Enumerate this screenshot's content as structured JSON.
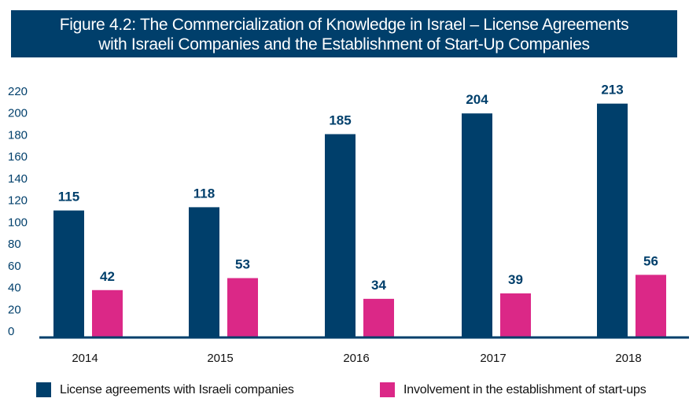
{
  "title": {
    "line1": "Figure 4.2: The Commercialization of Knowledge in Israel – License Agreements",
    "line2": "with Israeli Companies and the Establishment of Start-Up Companies"
  },
  "colors": {
    "title_bg": "#003f6b",
    "license": "#003f6b",
    "startups": "#db2887",
    "axis_text": "#003f6b"
  },
  "chart_data": {
    "type": "bar",
    "title": "Figure 4.2: The Commercialization of Knowledge in Israel – License Agreements with Israeli Companies and the Establishment of Start-Up Companies",
    "xlabel": "",
    "ylabel": "",
    "categories": [
      "2014",
      "2015",
      "2016",
      "2017",
      "2018"
    ],
    "series": [
      {
        "name": "License agreements with Israeli companies",
        "color": "#003f6b",
        "values": [
          115,
          118,
          185,
          204,
          213
        ]
      },
      {
        "name": "Involvement in the establishment of start-ups",
        "color": "#db2887",
        "values": [
          42,
          53,
          34,
          39,
          56
        ]
      }
    ],
    "ylim": [
      0,
      220
    ],
    "yticks": [
      0,
      20,
      40,
      60,
      80,
      100,
      120,
      140,
      160,
      180,
      200,
      220
    ],
    "grid": false,
    "data_labels": true,
    "legend_position": "bottom"
  }
}
